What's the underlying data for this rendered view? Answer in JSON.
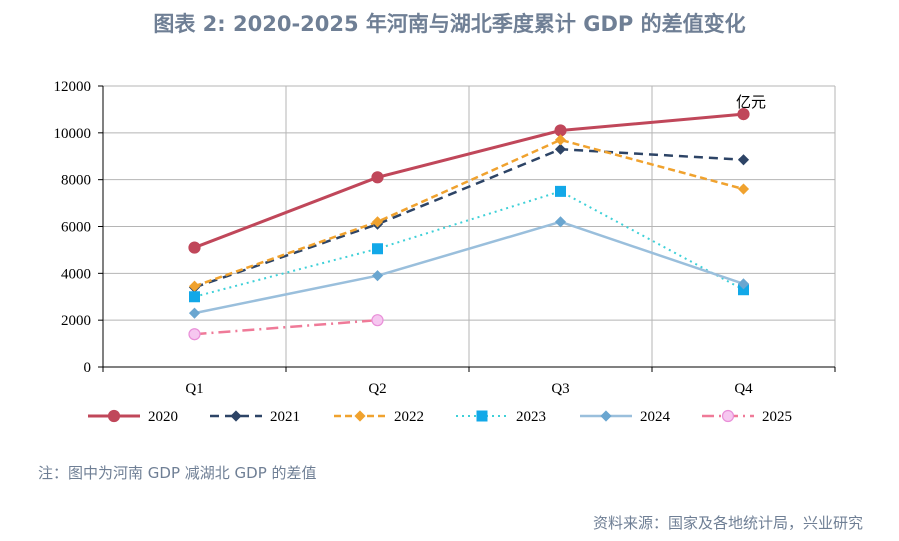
{
  "header": {
    "title": "图表 2:  2020-2025 年河南与湖北季度累计 GDP 的差值变化"
  },
  "footer": {
    "note": "注：图中为河南 GDP 减湖北 GDP 的差值",
    "source": "资料来源：国家及各地统计局，兴业研究"
  },
  "chart_data": {
    "type": "line",
    "title": "图表 2:  2020-2025 年河南与湖北季度累计 GDP 的差值变化",
    "unit": "亿元",
    "categories": [
      "Q1",
      "Q2",
      "Q3",
      "Q4"
    ],
    "ylim": [
      0,
      12000
    ],
    "yticks": [
      "0",
      "2000",
      "4000",
      "6000",
      "8000",
      "10000",
      "12000"
    ],
    "grid": true,
    "legend": "bottom",
    "series": [
      {
        "name": "2020",
        "values": [
          5100,
          8100,
          10100,
          10800
        ],
        "color": "#c0475a",
        "dash": "",
        "marker": "circle",
        "width": 3
      },
      {
        "name": "2021",
        "values": [
          3400,
          6100,
          9300,
          8850
        ],
        "color": "#2d4466",
        "dash": "9,6",
        "marker": "diamond",
        "width": 2.5
      },
      {
        "name": "2022",
        "values": [
          3450,
          6200,
          9700,
          7600
        ],
        "color": "#f0a22e",
        "dash": "7,4",
        "marker": "diamond",
        "width": 2.5
      },
      {
        "name": "2023",
        "values": [
          3000,
          5050,
          7500,
          3300
        ],
        "color": "#3ed0d8",
        "dash": "2,4",
        "marker": "square",
        "markerColor": "#12a8e8",
        "width": 2
      },
      {
        "name": "2024",
        "values": [
          2300,
          3900,
          6200,
          3550
        ],
        "color": "#9abfdc",
        "dash": "",
        "marker": "diamond",
        "markerColor": "#6aa6d0",
        "width": 2.5
      },
      {
        "name": "2025",
        "values": [
          1400,
          2000,
          null,
          null
        ],
        "color": "#ef7a98",
        "dash": "12,5,2,5",
        "marker": "circle",
        "markerColor": "#f6c7f0",
        "markerStroke": "#e98fd8",
        "width": 2.5
      }
    ]
  }
}
